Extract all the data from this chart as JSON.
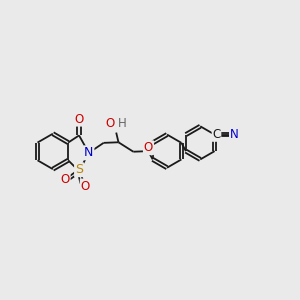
{
  "bg_color": "#eaeaea",
  "bond_color": "#1a1a1a",
  "bond_width": 1.3,
  "colors": {
    "O": "#cc0000",
    "N": "#0000cc",
    "S": "#b8860b",
    "H": "#666666",
    "CN_C": "#1a1a1a",
    "CN_N": "#0000cc"
  },
  "figsize": [
    3.0,
    3.0
  ],
  "dpi": 100
}
